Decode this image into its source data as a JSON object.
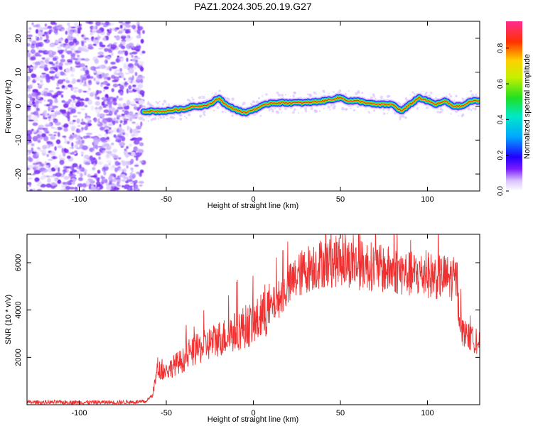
{
  "figure": {
    "title": "PAZ1.2024.305.20.19.G27"
  },
  "chart_data": [
    {
      "type": "heatmap",
      "xlabel": "Height of straight line (km)",
      "ylabel": "Frequency (Hz)",
      "xlim": [
        -130,
        130
      ],
      "ylim": [
        -25,
        25
      ],
      "xticks": [
        -100,
        -50,
        0,
        50,
        100
      ],
      "yticks": [
        -20,
        -10,
        0,
        10,
        20
      ],
      "colorbar": {
        "label": "Normalized spectral amplitude",
        "range": [
          0,
          0.95
        ],
        "ticks": [
          0.0,
          0.2,
          0.4,
          0.6,
          0.8
        ]
      },
      "noise_region_x": [
        -130,
        -63
      ],
      "ridge": {
        "x": [
          -63,
          -55,
          -50,
          -45,
          -40,
          -35,
          -30,
          -25,
          -20,
          -15,
          -10,
          -5,
          0,
          5,
          10,
          20,
          30,
          40,
          45,
          50,
          55,
          60,
          70,
          80,
          85,
          90,
          95,
          100,
          105,
          110,
          115,
          120,
          125,
          130
        ],
        "y": [
          -1.5,
          -1.5,
          -1.5,
          -1.0,
          -1.0,
          0.0,
          0.0,
          0.5,
          2.5,
          0.0,
          -1.0,
          -2.0,
          -1.0,
          0.0,
          1.0,
          1.0,
          1.0,
          1.5,
          2.0,
          2.5,
          1.5,
          1.5,
          0.5,
          0.5,
          -1.5,
          0.5,
          2.5,
          1.5,
          0.5,
          1.5,
          0.0,
          0.0,
          1.5,
          1.5
        ]
      }
    },
    {
      "type": "line",
      "xlabel": "Height of straight line (km)",
      "ylabel": "SNR (10 * v/v)",
      "xlim": [
        -130,
        130
      ],
      "ylim": [
        0,
        7200
      ],
      "xticks": [
        -100,
        -50,
        0,
        50,
        100
      ],
      "yticks": [
        2000,
        4000,
        6000
      ],
      "series": [
        {
          "color": "#f03030",
          "x": [
            -130,
            -100,
            -80,
            -62,
            -58,
            -55,
            -50,
            -45,
            -40,
            -35,
            -30,
            -25,
            -20,
            -15,
            -10,
            -5,
            0,
            5,
            10,
            15,
            20,
            25,
            30,
            35,
            40,
            45,
            50,
            55,
            60,
            65,
            70,
            75,
            80,
            85,
            90,
            95,
            100,
            105,
            110,
            115,
            117,
            118,
            120,
            125,
            130
          ],
          "y": [
            100,
            100,
            100,
            120,
            400,
            1500,
            1400,
            1700,
            1900,
            2200,
            2400,
            2600,
            2800,
            2900,
            3100,
            3300,
            3400,
            3700,
            4100,
            4500,
            5000,
            5400,
            5700,
            5900,
            6000,
            6000,
            6100,
            6000,
            5900,
            5900,
            5800,
            5700,
            5700,
            5600,
            5500,
            5500,
            5500,
            5400,
            5400,
            5300,
            5300,
            4000,
            3100,
            2800,
            2600
          ]
        }
      ]
    }
  ]
}
